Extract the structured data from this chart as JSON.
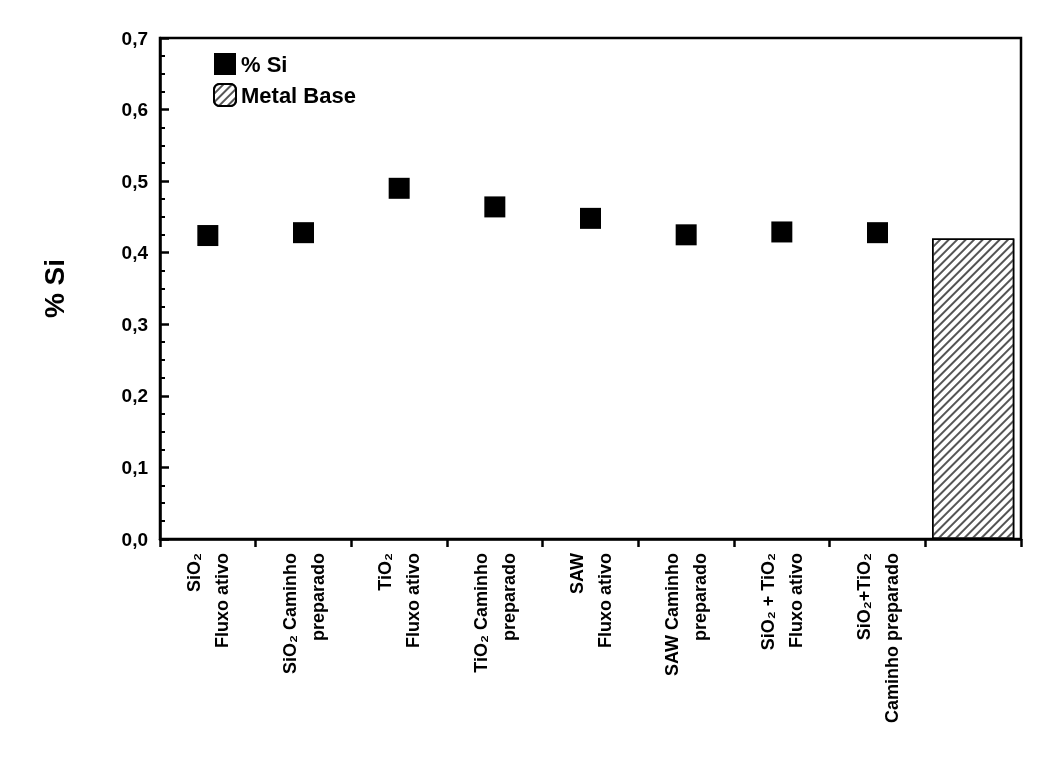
{
  "chart_data": {
    "type": "scatter",
    "ylabel": "% Si",
    "categories": [
      "SiO₂\nFluxo ativo",
      "SiO₂ Caminho\npreparado",
      "TiO₂\nFluxo ativo",
      "TiO₂ Caminho\npreparado",
      "SAW\nFluxo ativo",
      "SAW Caminho\npreparado",
      "SiO₂ + TiO₂\nFluxo ativo",
      "SiO₂+TiO₂\nCaminho preparado",
      null
    ],
    "series": [
      {
        "name": "% Si",
        "color": "#000000",
        "values": [
          0.424,
          0.428,
          0.49,
          0.464,
          0.448,
          0.425,
          0.429,
          0.428,
          null
        ]
      },
      {
        "name": "Metal Base",
        "type": "bar",
        "color": "#ffffff",
        "values": [
          null,
          null,
          null,
          null,
          null,
          null,
          null,
          null,
          0.42
        ]
      }
    ],
    "ylim": [
      0,
      0.7
    ],
    "yticks": [
      {
        "value": 0,
        "label": "0,0"
      },
      {
        "value": 0.1,
        "label": "0,1"
      },
      {
        "value": 0.2,
        "label": "0,2"
      },
      {
        "value": 0.3,
        "label": "0,3"
      },
      {
        "value": 0.4,
        "label": "0,4"
      },
      {
        "value": 0.5,
        "label": "0,5"
      },
      {
        "value": 0.6,
        "label": "0,6"
      },
      {
        "value": 0.7,
        "label": "0,7"
      }
    ],
    "grid": false,
    "legend": "top left",
    "marker": "square"
  }
}
